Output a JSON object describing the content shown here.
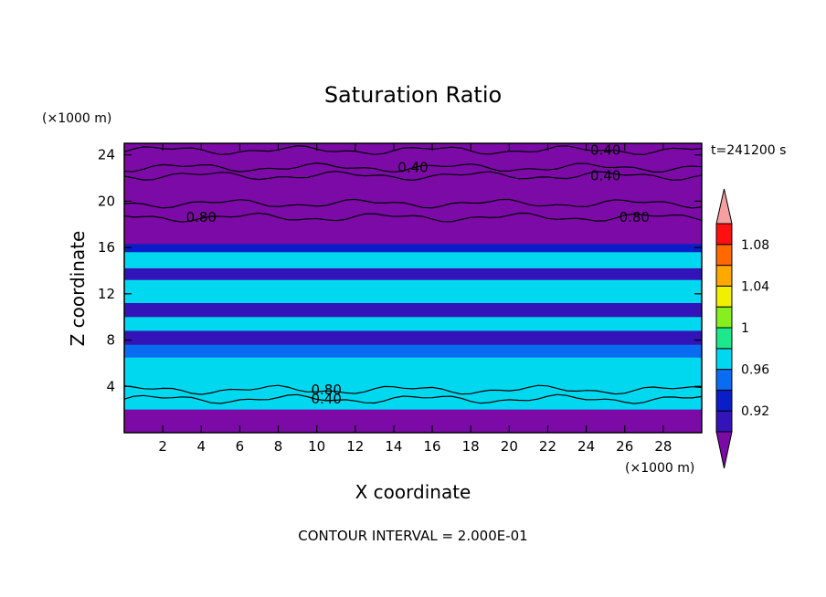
{
  "chart_data": {
    "type": "heatmap",
    "title": "Saturation Ratio",
    "xlabel": "X coordinate",
    "ylabel": "Z coordinate",
    "x_unit": "(×1000 m)",
    "y_unit": "(×1000 m)",
    "time_label": "t=241200 s",
    "footer": "CONTOUR INTERVAL = 2.000E-01",
    "xlim": [
      0,
      30
    ],
    "ylim": [
      0,
      25
    ],
    "x_ticks": [
      2,
      4,
      6,
      8,
      10,
      12,
      14,
      16,
      18,
      20,
      22,
      24,
      26,
      28
    ],
    "y_ticks": [
      4,
      8,
      12,
      16,
      20,
      24
    ],
    "colorbar": {
      "levels": [
        0.92,
        0.94,
        0.96,
        0.98,
        1.0,
        1.02,
        1.04,
        1.06,
        1.08,
        1.1
      ],
      "labels": [
        "0.92",
        "0.96",
        "1",
        "1.04",
        "1.08"
      ],
      "colors": [
        "#7b0aa6",
        "#3314b8",
        "#0a1ec8",
        "#0a6cf0",
        "#00d8f0",
        "#1ee88c",
        "#86f01e",
        "#f0f000",
        "#ffa800",
        "#ff6a00",
        "#ff1010",
        "#f5a0a0"
      ]
    },
    "contour_labels": [
      {
        "text": "0.40",
        "x": 15.0,
        "z": 22.9
      },
      {
        "text": "0.40",
        "x": 25.0,
        "z": 24.4
      },
      {
        "text": "0.40",
        "x": 25.0,
        "z": 22.2
      },
      {
        "text": "0.80",
        "x": 4.0,
        "z": 18.6
      },
      {
        "text": "0.80",
        "x": 26.5,
        "z": 18.6
      },
      {
        "text": "0.80",
        "x": 10.5,
        "z": 3.7
      },
      {
        "text": "0.40",
        "x": 10.5,
        "z": 2.9
      }
    ],
    "bands": [
      {
        "z0": 2.0,
        "z1": 6.5,
        "level": 0.99
      },
      {
        "z0": 6.5,
        "z1": 7.6,
        "level": 0.97
      },
      {
        "z0": 7.6,
        "z1": 8.8,
        "level": 0.93
      },
      {
        "z0": 8.8,
        "z1": 10.0,
        "level": 0.98
      },
      {
        "z0": 10.0,
        "z1": 11.2,
        "level": 0.92
      },
      {
        "z0": 11.2,
        "z1": 13.2,
        "level": 0.98
      },
      {
        "z0": 13.2,
        "z1": 14.2,
        "level": 0.93
      },
      {
        "z0": 14.2,
        "z1": 15.6,
        "level": 0.98
      },
      {
        "z0": 15.6,
        "z1": 16.3,
        "level": 0.95
      }
    ]
  }
}
